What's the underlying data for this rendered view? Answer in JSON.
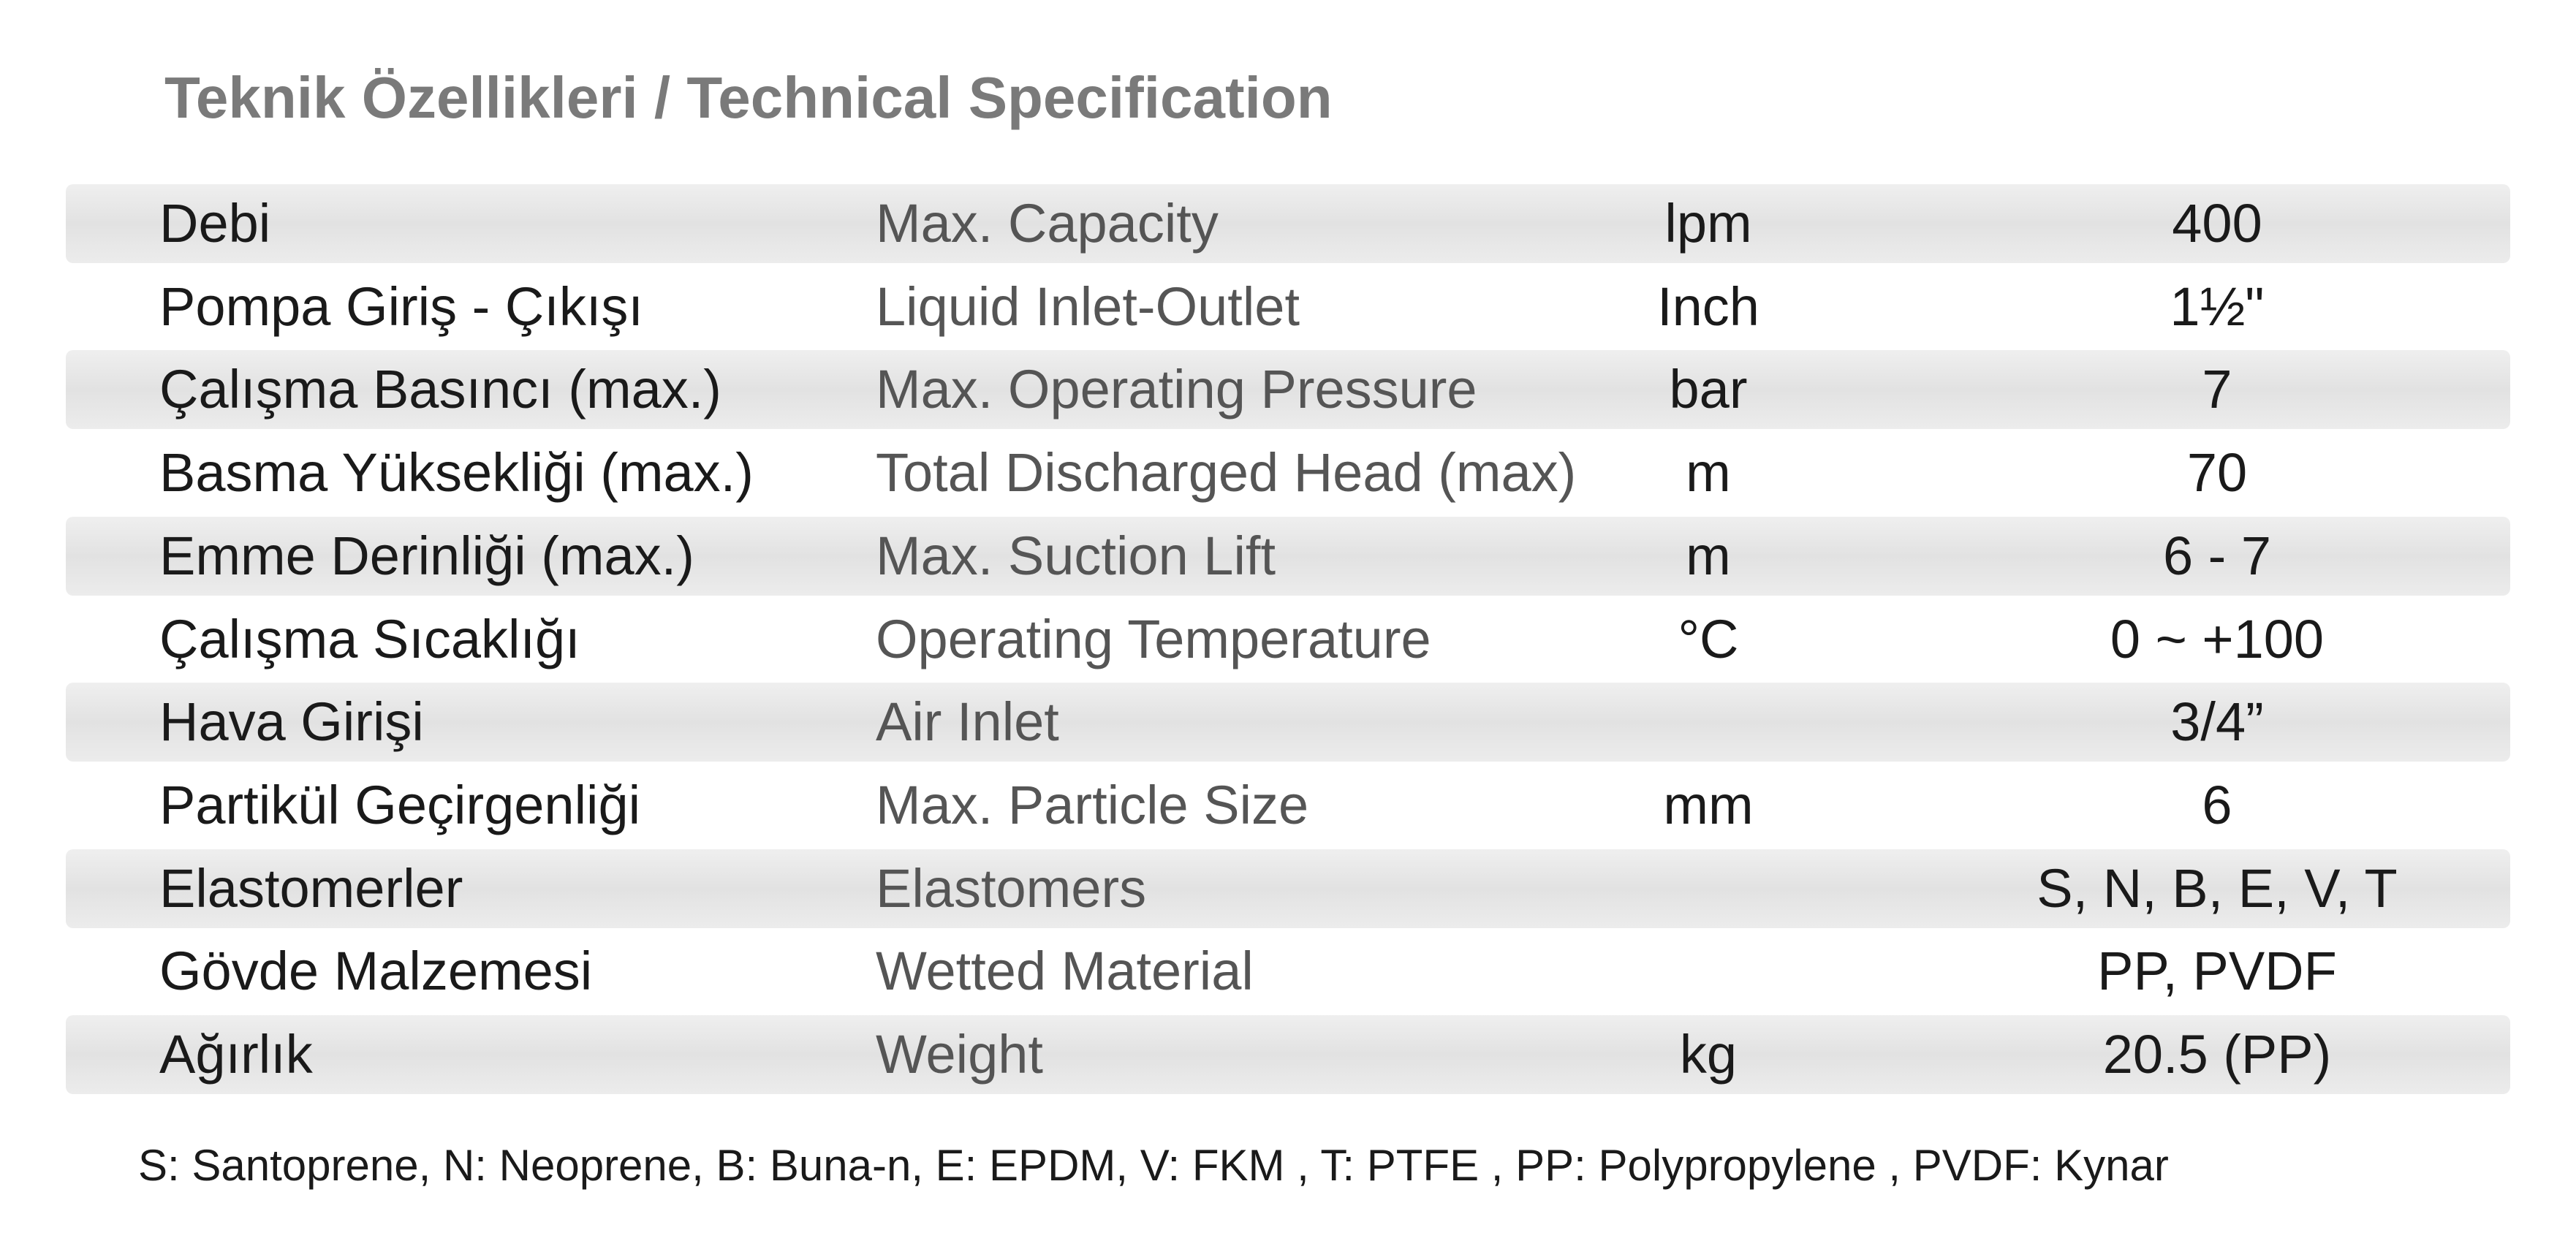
{
  "header": {
    "title": "Teknik Özellikleri / Technical Specification"
  },
  "table": {
    "rows": [
      {
        "tr": "Debi",
        "en": "Max. Capacity",
        "unit": "lpm",
        "value": "400"
      },
      {
        "tr": "Pompa Giriş - Çıkışı",
        "en": "Liquid Inlet-Outlet",
        "unit": "Inch",
        "value": "1½\""
      },
      {
        "tr": "Çalışma Basıncı (max.)",
        "en": "Max. Operating Pressure",
        "unit": "bar",
        "value": "7"
      },
      {
        "tr": "Basma Yüksekliği (max.)",
        "en": "Total Discharged Head (max)",
        "unit": "m",
        "value": "70"
      },
      {
        "tr": "Emme Derinliği (max.)",
        "en": "Max. Suction Lift",
        "unit": "m",
        "value": "6 - 7"
      },
      {
        "tr": "Çalışma Sıcaklığı",
        "en": "Operating Temperature",
        "unit": "°C",
        "value": "0 ~ +100"
      },
      {
        "tr": "Hava Girişi",
        "en": "Air Inlet",
        "value": "3/4”"
      },
      {
        "tr": "Partikül Geçirgenliği",
        "en": "Max. Particle Size",
        "unit": "mm",
        "value": "6"
      },
      {
        "tr": "Elastomerler",
        "en": "Elastomers",
        "value": "S, N, B, E, V, T"
      },
      {
        "tr": "Gövde Malzemesi",
        "en": "Wetted Material",
        "value": "PP, PVDF"
      },
      {
        "tr": "Ağırlık",
        "en": "Weight",
        "unit": "kg",
        "value": "20.5 (PP)"
      }
    ]
  },
  "footnote": "S: Santoprene, N: Neoprene, B: Buna-n, E: EPDM, V: FKM , T: PTFE , PP: Polypropylene , PVDF: Kynar"
}
